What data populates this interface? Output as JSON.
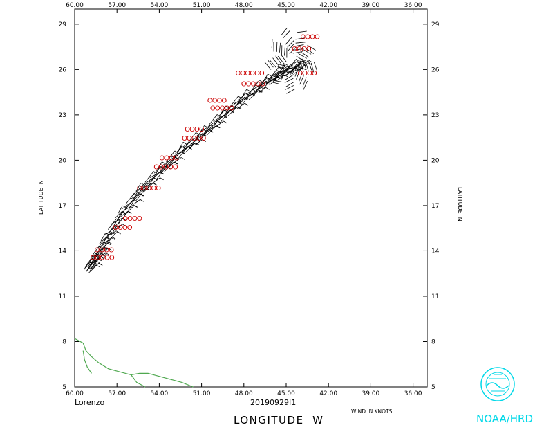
{
  "chart_data": {
    "type": "scatter",
    "storm_name": "Lorenzo",
    "date_code": "20190929I1",
    "xlabel": "LONGITUDE  W",
    "ylabel": "LATITUDE  N",
    "wind_units": "WIND IN KNOTS",
    "agency": "NOAA/HRD",
    "xlim": [
      60,
      35
    ],
    "ylim": [
      5,
      30
    ],
    "x_ticks": [
      "60.00",
      "57.00",
      "54.00",
      "51.00",
      "48.00",
      "45.00",
      "42.00",
      "39.00",
      "36.00"
    ],
    "y_ticks": [
      "5",
      "8",
      "11",
      "14",
      "17",
      "20",
      "23",
      "26",
      "29"
    ],
    "grid": false,
    "colors": {
      "coast": "#4fa84f",
      "markers": "#cc0000",
      "barbs": "#000000",
      "logo": "#00d8e8"
    },
    "track": [
      [
        59.2,
        12.6
      ],
      [
        58.8,
        13.2
      ],
      [
        58.0,
        14.5
      ],
      [
        56.8,
        16.3
      ],
      [
        55.5,
        17.8
      ],
      [
        54.0,
        19.2
      ],
      [
        52.5,
        20.5
      ],
      [
        51.0,
        21.6
      ],
      [
        49.5,
        22.9
      ],
      [
        48.0,
        24.0
      ],
      [
        46.5,
        25.0
      ],
      [
        45.3,
        25.7
      ],
      [
        44.0,
        26.0
      ]
    ],
    "observations": [
      {
        "lon": 58.9,
        "lat": 13.4,
        "marker": "OOOOO"
      },
      {
        "lon": 58.6,
        "lat": 13.9,
        "marker": "OOOO"
      },
      {
        "lon": 57.3,
        "lat": 15.4,
        "marker": "OOOO"
      },
      {
        "lon": 56.6,
        "lat": 16.0,
        "marker": "OOOO"
      },
      {
        "lon": 55.6,
        "lat": 18.0,
        "marker": "OOOOO"
      },
      {
        "lon": 54.4,
        "lat": 19.4,
        "marker": "OOOOO"
      },
      {
        "lon": 54.0,
        "lat": 20.0,
        "marker": "OOOO"
      },
      {
        "lon": 52.4,
        "lat": 21.3,
        "marker": "OOOOO"
      },
      {
        "lon": 52.2,
        "lat": 21.9,
        "marker": "OOOO"
      },
      {
        "lon": 50.4,
        "lat": 23.3,
        "marker": "OOOOO"
      },
      {
        "lon": 50.6,
        "lat": 23.8,
        "marker": "OOOO"
      },
      {
        "lon": 48.2,
        "lat": 24.9,
        "marker": "OOOOO"
      },
      {
        "lon": 48.6,
        "lat": 25.6,
        "marker": "OOOOOO"
      },
      {
        "lon": 44.2,
        "lat": 25.6,
        "marker": "OOOO"
      },
      {
        "lon": 44.6,
        "lat": 27.2,
        "marker": "OOOO"
      },
      {
        "lon": 44.0,
        "lat": 28.0,
        "marker": "OOOO"
      }
    ]
  }
}
